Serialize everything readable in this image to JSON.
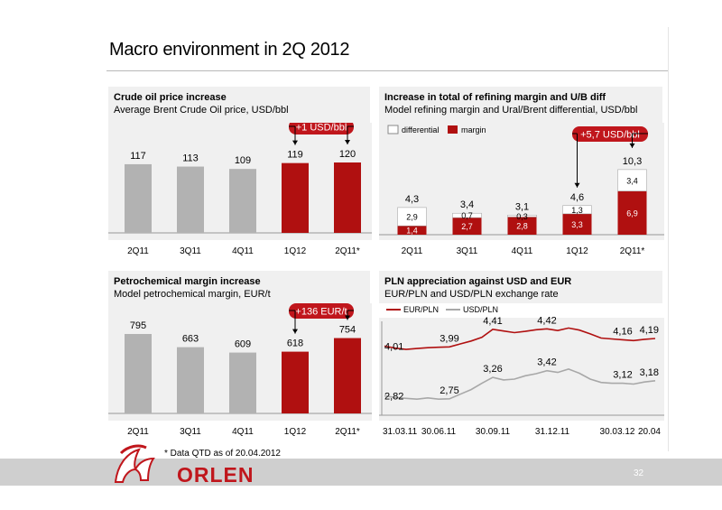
{
  "page": {
    "title": "Macro environment in 2Q 2012",
    "footnote": "* Data QTD as of 20.04.2012",
    "page_number": "32",
    "logo_text": "ORLEN"
  },
  "colors": {
    "grey_bar": "#b2b2b2",
    "red_bar": "#b01010",
    "callout": "#c0161c",
    "eur_line": "#b01010",
    "usd_line": "#a8a8a8"
  },
  "chart_data": [
    {
      "id": "crude",
      "type": "bar",
      "title": "Crude oil price increase",
      "subtitle": "Average Brent Crude Oil price, USD/bbl",
      "categories": [
        "2Q11",
        "3Q11",
        "4Q11",
        "1Q12",
        "2Q11*"
      ],
      "values": [
        117,
        113,
        109,
        119,
        120
      ],
      "value_labels": [
        "117",
        "113",
        "109",
        "119",
        "120"
      ],
      "highlight": [
        false,
        false,
        false,
        true,
        true
      ],
      "callout": "+1 USD/bbl",
      "ylim": [
        0,
        130
      ]
    },
    {
      "id": "refining",
      "type": "bar",
      "stacked": true,
      "title": "Increase in total of refining margin and U/B diff",
      "subtitle": "Model refining margin and Ural/Brent differential, USD/bbl",
      "categories": [
        "2Q11",
        "3Q11",
        "4Q11",
        "1Q12",
        "2Q11*"
      ],
      "series": [
        {
          "name": "margin",
          "values": [
            1.4,
            2.7,
            2.8,
            3.3,
            6.9
          ],
          "labels": [
            "1,4",
            "2,7",
            "2,8",
            "3,3",
            "6,9"
          ]
        },
        {
          "name": "differential",
          "values": [
            2.9,
            0.7,
            0.3,
            1.3,
            3.4
          ],
          "labels": [
            "2,9",
            "0,7",
            "0,3",
            "1,3",
            "3,4"
          ]
        }
      ],
      "totals": [
        "4,3",
        "3,4",
        "3,1",
        "4,6",
        "10,3"
      ],
      "total_values": [
        4.3,
        3.4,
        3.1,
        4.6,
        10.3
      ],
      "legend": [
        "differential",
        "margin"
      ],
      "callout": "+5,7 USD/bbl",
      "ylim": [
        0,
        12
      ]
    },
    {
      "id": "petro",
      "type": "bar",
      "title": "Petrochemical margin increase",
      "subtitle": "Model petrochemical margin, EUR/t",
      "categories": [
        "2Q11",
        "3Q11",
        "4Q11",
        "1Q12",
        "2Q11*"
      ],
      "values": [
        795,
        663,
        609,
        618,
        754
      ],
      "value_labels": [
        "795",
        "663",
        "609",
        "618",
        "754"
      ],
      "highlight": [
        false,
        false,
        false,
        true,
        true
      ],
      "callout": "+136 EUR/t",
      "ylim": [
        0,
        880
      ]
    },
    {
      "id": "fx",
      "type": "line",
      "title": "PLN appreciation against USD and EUR",
      "subtitle": "EUR/PLN and USD/PLN exchange rate",
      "x_ticks": [
        "31.03.11",
        "30.06.11",
        "30.09.11",
        "31.12.11",
        "30.03.12",
        "20.04"
      ],
      "ylim": [
        2.4,
        4.6
      ],
      "series": [
        {
          "name": "EUR/PLN",
          "points": [
            [
              0,
              4.01
            ],
            [
              0.04,
              3.96
            ],
            [
              0.08,
              3.93
            ],
            [
              0.12,
              3.95
            ],
            [
              0.16,
              3.97
            ],
            [
              0.2,
              3.98
            ],
            [
              0.24,
              3.99
            ],
            [
              0.28,
              4.06
            ],
            [
              0.32,
              4.13
            ],
            [
              0.36,
              4.22
            ],
            [
              0.4,
              4.41
            ],
            [
              0.44,
              4.37
            ],
            [
              0.48,
              4.33
            ],
            [
              0.52,
              4.36
            ],
            [
              0.56,
              4.4
            ],
            [
              0.6,
              4.42
            ],
            [
              0.64,
              4.38
            ],
            [
              0.68,
              4.44
            ],
            [
              0.72,
              4.39
            ],
            [
              0.76,
              4.3
            ],
            [
              0.8,
              4.2
            ],
            [
              0.84,
              4.18
            ],
            [
              0.88,
              4.16
            ],
            [
              0.92,
              4.14
            ],
            [
              0.96,
              4.17
            ],
            [
              1.0,
              4.19
            ]
          ]
        },
        {
          "name": "USD/PLN",
          "points": [
            [
              0,
              2.82
            ],
            [
              0.04,
              2.78
            ],
            [
              0.08,
              2.76
            ],
            [
              0.12,
              2.74
            ],
            [
              0.16,
              2.77
            ],
            [
              0.2,
              2.74
            ],
            [
              0.24,
              2.75
            ],
            [
              0.28,
              2.86
            ],
            [
              0.32,
              2.97
            ],
            [
              0.36,
              3.12
            ],
            [
              0.4,
              3.26
            ],
            [
              0.44,
              3.2
            ],
            [
              0.48,
              3.22
            ],
            [
              0.52,
              3.3
            ],
            [
              0.56,
              3.35
            ],
            [
              0.6,
              3.42
            ],
            [
              0.64,
              3.38
            ],
            [
              0.68,
              3.46
            ],
            [
              0.72,
              3.36
            ],
            [
              0.76,
              3.22
            ],
            [
              0.8,
              3.14
            ],
            [
              0.84,
              3.12
            ],
            [
              0.88,
              3.12
            ],
            [
              0.92,
              3.1
            ],
            [
              0.96,
              3.15
            ],
            [
              1.0,
              3.18
            ]
          ]
        }
      ],
      "annotations": [
        {
          "series": 0,
          "x": 0,
          "label": "4,01"
        },
        {
          "series": 0,
          "x": 0.24,
          "label": "3,99"
        },
        {
          "series": 0,
          "x": 0.4,
          "label": "4,41"
        },
        {
          "series": 0,
          "x": 0.6,
          "label": "4,42"
        },
        {
          "series": 0,
          "x": 0.88,
          "label": "4,16"
        },
        {
          "series": 0,
          "x": 1.0,
          "label": "4,19"
        },
        {
          "series": 1,
          "x": 0,
          "label": "2,82"
        },
        {
          "series": 1,
          "x": 0.24,
          "label": "2,75"
        },
        {
          "series": 1,
          "x": 0.4,
          "label": "3,26"
        },
        {
          "series": 1,
          "x": 0.6,
          "label": "3,42"
        },
        {
          "series": 1,
          "x": 0.88,
          "label": "3,12"
        },
        {
          "series": 1,
          "x": 1.0,
          "label": "3,18"
        }
      ]
    }
  ]
}
